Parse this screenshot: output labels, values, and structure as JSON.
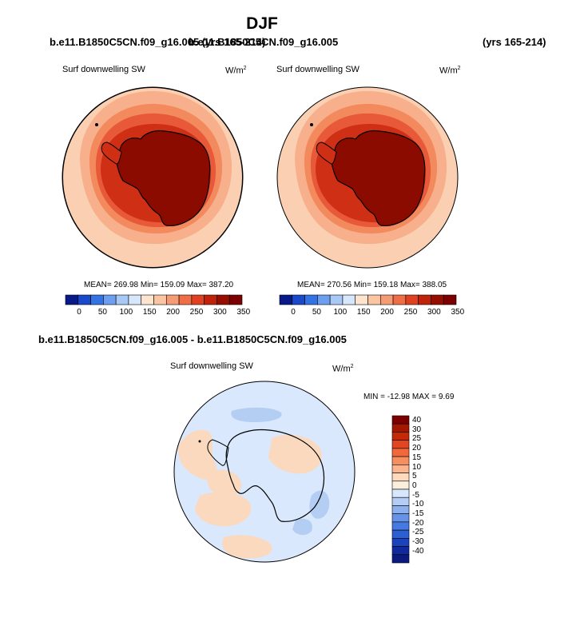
{
  "page": {
    "title": "DJF",
    "top_left_case": "b.e11.B1850C5CN.f09_g16.005 (yrs 165-214)",
    "top_right_case": "b.e11.B1850C5CN.f09_g16.005",
    "top_right_years": "(yrs 165-214)",
    "diff_case": "b.e11.B1850C5CN.f09_g16.005 - b.e11.B1850C5CN.f09_g16.005"
  },
  "panels": {
    "left": {
      "field": "Surf downwelling SW",
      "units": "W/m",
      "units_sup": "2",
      "stats": "MEAN= 269.98  Min= 159.09  Max= 387.20",
      "mean": 269.98,
      "min": 159.09,
      "max": 387.2
    },
    "right": {
      "field": "Surf downwelling SW",
      "units": "W/m",
      "units_sup": "2",
      "stats": "MEAN= 270.56  Min= 159.18  Max= 388.05",
      "mean": 270.56,
      "min": 159.18,
      "max": 388.05
    },
    "diff": {
      "field": "Surf downwelling SW",
      "units": "W/m",
      "units_sup": "2",
      "stats": "MIN = -12.98 MAX =   9.69",
      "min": -12.98,
      "max": 9.69
    }
  },
  "colorbars": {
    "abs": {
      "labels": [
        "0",
        "50",
        "100",
        "150",
        "200",
        "250",
        "300",
        "350"
      ],
      "colors": [
        "#08198a",
        "#1a49c9",
        "#3473e4",
        "#6d9eef",
        "#a8c8f5",
        "#d6e6fb",
        "#fde4cf",
        "#fbc5a3",
        "#f59c74",
        "#ef6e45",
        "#e04120",
        "#c02309",
        "#950e00",
        "#7d0000"
      ]
    },
    "diff": {
      "labels": [
        "40",
        "30",
        "25",
        "20",
        "15",
        "10",
        "5",
        "0",
        "-5",
        "-10",
        "-15",
        "-20",
        "-25",
        "-30",
        "-40"
      ],
      "colors": [
        "#7d0000",
        "#a41700",
        "#c52a07",
        "#e24521",
        "#f2683a",
        "#f78e5f",
        "#fbb48d",
        "#fdd9bd",
        "#faeedd",
        "#d8e7fb",
        "#b5cdf5",
        "#8cb0ee",
        "#6692e8",
        "#4679e2",
        "#2c5ed4",
        "#1c43bc",
        "#102a9d",
        "#0a1a7d"
      ]
    }
  },
  "map_colors": {
    "ocean_far": "#fbd0b2",
    "ring_1": "#f8b08c",
    "ring_2": "#f28a5e",
    "ring_3": "#e8593a",
    "ring_4": "#cf3015",
    "continent": "#8c0b00",
    "diff_bg": "#d9e8fc",
    "diff_pos": "#fbd9bf",
    "diff_neg": "#b3cdf3"
  }
}
